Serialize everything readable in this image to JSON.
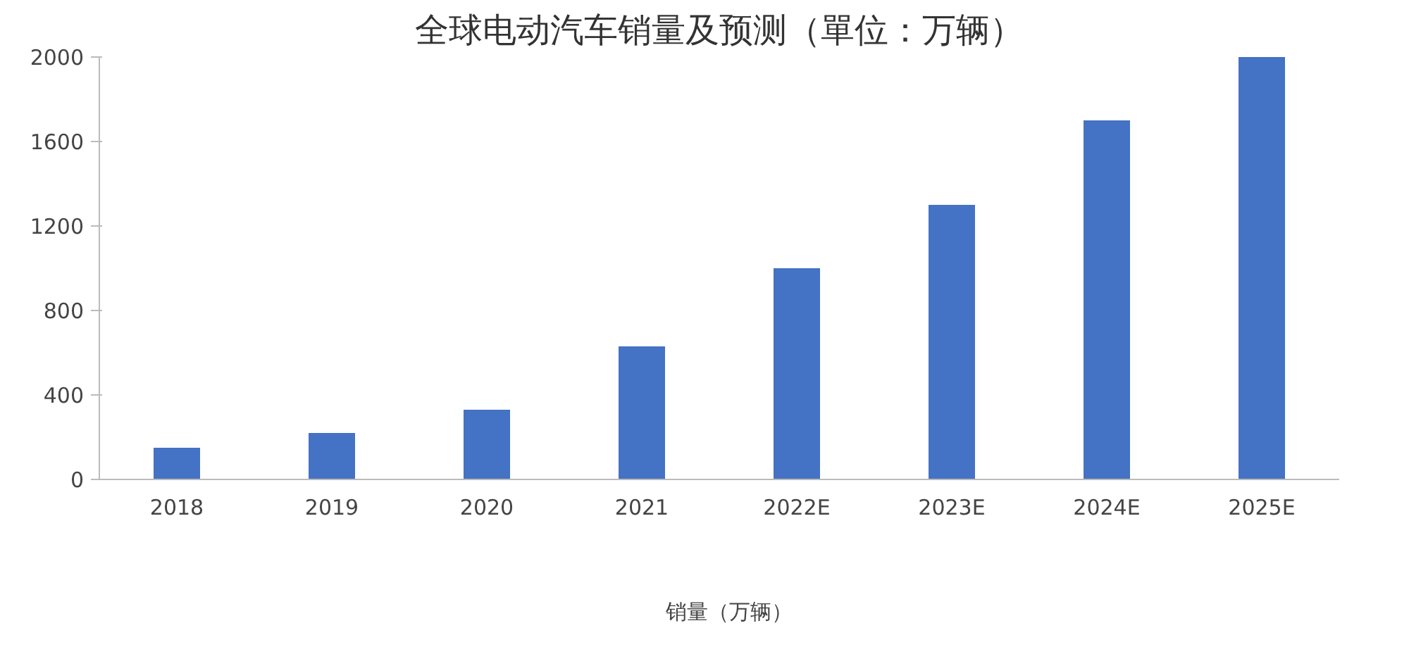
{
  "chart_data": {
    "type": "bar",
    "title": "全球电动汽车销量及预测（單位：万辆）",
    "categories": [
      "2018",
      "2019",
      "2020",
      "2021",
      "2022E",
      "2023E",
      "2024E",
      "2025E"
    ],
    "series": [
      {
        "name": "销量（万辆）",
        "color": "#4472c4",
        "values": [
          150,
          220,
          330,
          630,
          1000,
          1300,
          1700,
          2000
        ]
      }
    ],
    "ylim": [
      0,
      2000
    ],
    "yticks": [
      0,
      400,
      800,
      1200,
      1600,
      2000
    ],
    "grid": false,
    "legend": "bottom"
  }
}
